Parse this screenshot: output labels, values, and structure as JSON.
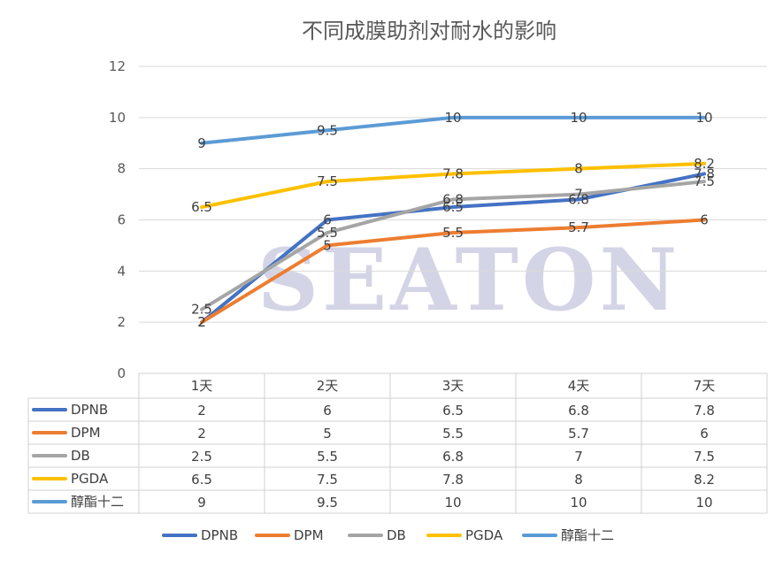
{
  "chart_data": {
    "type": "line",
    "title": "不同成膜助剂对耐水的影响",
    "categories": [
      "1天",
      "2天",
      "3天",
      "4天",
      "7天"
    ],
    "ylim": [
      0,
      12
    ],
    "yticks": [
      0,
      2,
      4,
      6,
      8,
      10,
      12
    ],
    "grid": true,
    "legend": "bottom",
    "data_table": true,
    "series": [
      {
        "name": "DPNB",
        "color": "#4472c4",
        "values": [
          2,
          6,
          6.5,
          6.8,
          7.8
        ]
      },
      {
        "name": "DPM",
        "color": "#ed7d31",
        "values": [
          2,
          5,
          5.5,
          5.7,
          6
        ]
      },
      {
        "name": "DB",
        "color": "#a5a5a5",
        "values": [
          2.5,
          5.5,
          6.8,
          7,
          7.5
        ]
      },
      {
        "name": "PGDA",
        "color": "#ffc000",
        "values": [
          6.5,
          7.5,
          7.8,
          8,
          8.2
        ]
      },
      {
        "name": "醇酯十二",
        "color": "#5b9bd5",
        "values": [
          9,
          9.5,
          10,
          10,
          10
        ]
      }
    ],
    "data_labels": [
      [
        "2",
        "6",
        "6.5",
        "6.8",
        "7.8"
      ],
      [
        "2",
        "5",
        "5.5",
        "5.7",
        "6"
      ],
      [
        "2.5",
        "5.5",
        "6.8",
        "7",
        "7.5"
      ],
      [
        "6.5",
        "7.5",
        "7.8",
        "8",
        "8.2"
      ],
      [
        "9",
        "9.5",
        "10",
        "10",
        "10"
      ]
    ]
  },
  "watermark": "SEATON"
}
